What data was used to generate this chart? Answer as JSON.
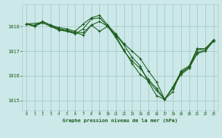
{
  "title": "Graphe pression niveau de la mer (hPa)",
  "bg_color": "#cce8e8",
  "grid_color": "#aacccc",
  "line_color": "#1a5c1a",
  "xlim": [
    -0.5,
    23.5
  ],
  "ylim": [
    1014.6,
    1018.9
  ],
  "yticks": [
    1015,
    1016,
    1017,
    1018
  ],
  "xticks": [
    0,
    1,
    2,
    3,
    4,
    5,
    6,
    7,
    8,
    9,
    10,
    11,
    12,
    13,
    14,
    15,
    16,
    17,
    18,
    19,
    20,
    21,
    22,
    23
  ],
  "series": [
    {
      "x": [
        0,
        1,
        2,
        3,
        4,
        5,
        6,
        7,
        8,
        9,
        10,
        11,
        12,
        13,
        14,
        15,
        16,
        17,
        18,
        19,
        20,
        21,
        22,
        23
      ],
      "y": [
        1018.1,
        1018.05,
        1018.2,
        1018.05,
        1017.95,
        1017.9,
        1017.8,
        1018.1,
        1018.35,
        1018.45,
        1018.05,
        1017.7,
        1017.3,
        1017.0,
        1016.7,
        1016.2,
        1015.75,
        1015.05,
        1015.35,
        1016.2,
        1016.4,
        1017.1,
        1017.1,
        1017.45
      ]
    },
    {
      "x": [
        0,
        1,
        2,
        3,
        4,
        5,
        6,
        7,
        8,
        9,
        10,
        11,
        12,
        13,
        14,
        15,
        16,
        17,
        18,
        19,
        20,
        21,
        22,
        23
      ],
      "y": [
        1018.1,
        1018.0,
        1018.15,
        1018.0,
        1017.9,
        1017.85,
        1017.75,
        1017.75,
        1018.05,
        1017.8,
        1018.0,
        1017.65,
        1017.25,
        1016.75,
        1016.4,
        1015.75,
        1015.2,
        1015.05,
        1015.5,
        1016.1,
        1016.35,
        1016.95,
        1017.05,
        1017.45
      ]
    },
    {
      "x": [
        0,
        2,
        4,
        5,
        6,
        7,
        8,
        9,
        10,
        11,
        12,
        13,
        14,
        15,
        16,
        17,
        18,
        19,
        20,
        21,
        22,
        23
      ],
      "y": [
        1018.1,
        1018.15,
        1017.85,
        1017.8,
        1017.75,
        1017.65,
        1018.05,
        1018.2,
        1018.0,
        1017.6,
        1017.05,
        1016.5,
        1016.05,
        1015.8,
        1015.4,
        1015.05,
        1015.5,
        1016.05,
        1016.3,
        1016.9,
        1017.0,
        1017.4
      ]
    },
    {
      "x": [
        0,
        1,
        2,
        3,
        4,
        5,
        6,
        7,
        8,
        9,
        10,
        11,
        12,
        13,
        14,
        15,
        16,
        17,
        18,
        19,
        20,
        21,
        22,
        23
      ],
      "y": [
        1018.1,
        1018.0,
        1018.2,
        1018.05,
        1017.9,
        1017.8,
        1017.7,
        1017.9,
        1018.3,
        1018.35,
        1018.0,
        1017.55,
        1017.0,
        1016.6,
        1016.3,
        1015.85,
        1015.5,
        1015.05,
        1015.55,
        1016.15,
        1016.35,
        1017.05,
        1017.1,
        1017.45
      ]
    }
  ]
}
